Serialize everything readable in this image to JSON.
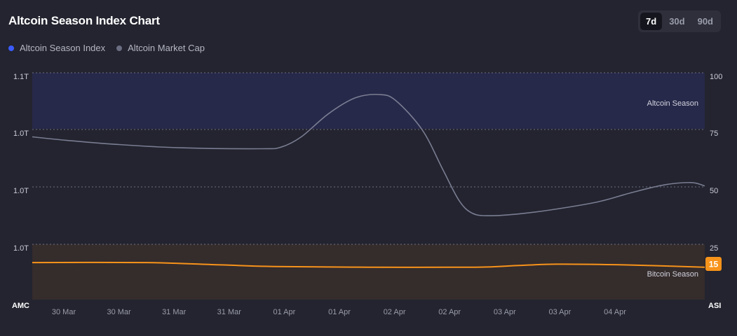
{
  "title": "Altcoin Season Index Chart",
  "ranges": [
    {
      "label": "7d",
      "active": true
    },
    {
      "label": "30d",
      "active": false
    },
    {
      "label": "90d",
      "active": false
    }
  ],
  "legend": [
    {
      "label": "Altcoin Season Index",
      "color": "#3b5bff"
    },
    {
      "label": "Altcoin Market Cap",
      "color": "#6b6e82"
    }
  ],
  "colors": {
    "index_line": "#f7931a",
    "market_cap_line": "#7a7d92",
    "altcoin_zone": "#27294a",
    "bitcoin_zone": "#352c2c",
    "badge": "#f7931a"
  },
  "chart_data": {
    "type": "line",
    "left_axis": {
      "ticks": [
        "1.1T",
        "1.0T",
        "1.0T",
        "1.0T"
      ],
      "label": "AMC"
    },
    "right_axis": {
      "ticks": [
        "100",
        "75",
        "50",
        "25"
      ],
      "label": "ASI",
      "ylim": [
        0,
        100
      ]
    },
    "x_labels": [
      "30 Mar",
      "30 Mar",
      "31 Mar",
      "31 Mar",
      "01 Apr",
      "01 Apr",
      "02 Apr",
      "02 Apr",
      "03 Apr",
      "03 Apr",
      "04 Apr"
    ],
    "zones": [
      {
        "label": "Altcoin Season",
        "from": 75,
        "to": 100
      },
      {
        "label": "Bitcoin Season",
        "from": 0,
        "to": 25
      }
    ],
    "series": [
      {
        "name": "Altcoin Season Index",
        "axis": "right",
        "points": [
          [
            0,
            17
          ],
          [
            0.17,
            17
          ],
          [
            0.28,
            16
          ],
          [
            0.36,
            15.3
          ],
          [
            0.5,
            15
          ],
          [
            0.66,
            15
          ],
          [
            0.72,
            15.7
          ],
          [
            0.78,
            16.3
          ],
          [
            0.88,
            16
          ],
          [
            1.0,
            15
          ]
        ]
      },
      {
        "name": "Altcoin Market Cap",
        "axis": "right",
        "points": [
          [
            0,
            72
          ],
          [
            0.05,
            70.5
          ],
          [
            0.12,
            68.8
          ],
          [
            0.22,
            67.2
          ],
          [
            0.34,
            66.8
          ],
          [
            0.37,
            67.5
          ],
          [
            0.4,
            72
          ],
          [
            0.44,
            82
          ],
          [
            0.48,
            89
          ],
          [
            0.515,
            90.5
          ],
          [
            0.54,
            88
          ],
          [
            0.58,
            75
          ],
          [
            0.61,
            58
          ],
          [
            0.635,
            44
          ],
          [
            0.655,
            38.5
          ],
          [
            0.68,
            37.5
          ],
          [
            0.72,
            38.2
          ],
          [
            0.77,
            40
          ],
          [
            0.84,
            43.5
          ],
          [
            0.89,
            47.5
          ],
          [
            0.94,
            51
          ],
          [
            0.98,
            52
          ],
          [
            1.0,
            50.5
          ]
        ]
      }
    ],
    "current_value": "15"
  }
}
